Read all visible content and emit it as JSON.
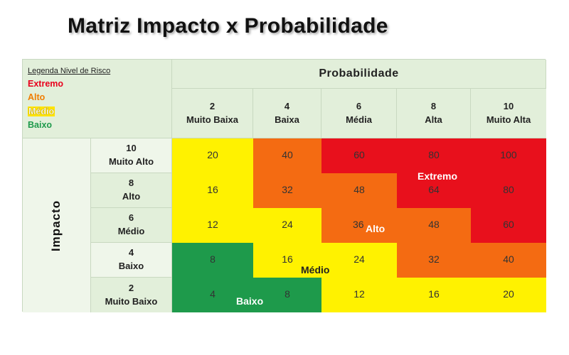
{
  "title": "Matriz Impacto x Probabilidade",
  "legend": {
    "title": "Legenda Nivel de Risco",
    "items": [
      {
        "label": "Extremo",
        "color": "#e8001c"
      },
      {
        "label": "Alto",
        "color": "#f07d00"
      },
      {
        "label": "Médio",
        "color": "#ffe400"
      },
      {
        "label": "Baixo",
        "color": "#1e9a4b"
      }
    ]
  },
  "probability": {
    "title": "Probabilidade",
    "columns": [
      {
        "value": "2",
        "label": "Muito Baixa"
      },
      {
        "value": "4",
        "label": "Baixa"
      },
      {
        "value": "6",
        "label": "Média"
      },
      {
        "value": "8",
        "label": "Alta"
      },
      {
        "value": "10",
        "label": "Muito Alta"
      }
    ]
  },
  "impact": {
    "title": "Impacto",
    "rows": [
      {
        "value": "10",
        "label": "Muito Alto",
        "cells": [
          "20",
          "40",
          "60",
          "80",
          "100"
        ]
      },
      {
        "value": "8",
        "label": "Alto",
        "cells": [
          "16",
          "32",
          "48",
          "64",
          "80"
        ]
      },
      {
        "value": "6",
        "label": "Médio",
        "cells": [
          "12",
          "24",
          "36",
          "48",
          "60"
        ]
      },
      {
        "value": "4",
        "label": "Baixo",
        "cells": [
          "8",
          "16",
          "24",
          "32",
          "40"
        ]
      },
      {
        "value": "2",
        "label": "Muito Baixo",
        "cells": [
          "4",
          "8",
          "12",
          "16",
          "20"
        ]
      }
    ]
  },
  "cell_levels": [
    [
      "Médio",
      "Alto",
      "Extremo",
      "Extremo",
      "Extremo"
    ],
    [
      "Médio",
      "Alto",
      "Alto",
      "Extremo",
      "Extremo"
    ],
    [
      "Médio",
      "Médio",
      "Alto",
      "Alto",
      "Extremo"
    ],
    [
      "Baixo",
      "Médio",
      "Médio",
      "Alto",
      "Alto"
    ],
    [
      "Baixo",
      "Baixo",
      "Médio",
      "Médio",
      "Médio"
    ]
  ],
  "zone_labels": {
    "extremo": "Extremo",
    "alto": "Alto",
    "medio": "Médio",
    "baixo": "Baixo"
  }
}
